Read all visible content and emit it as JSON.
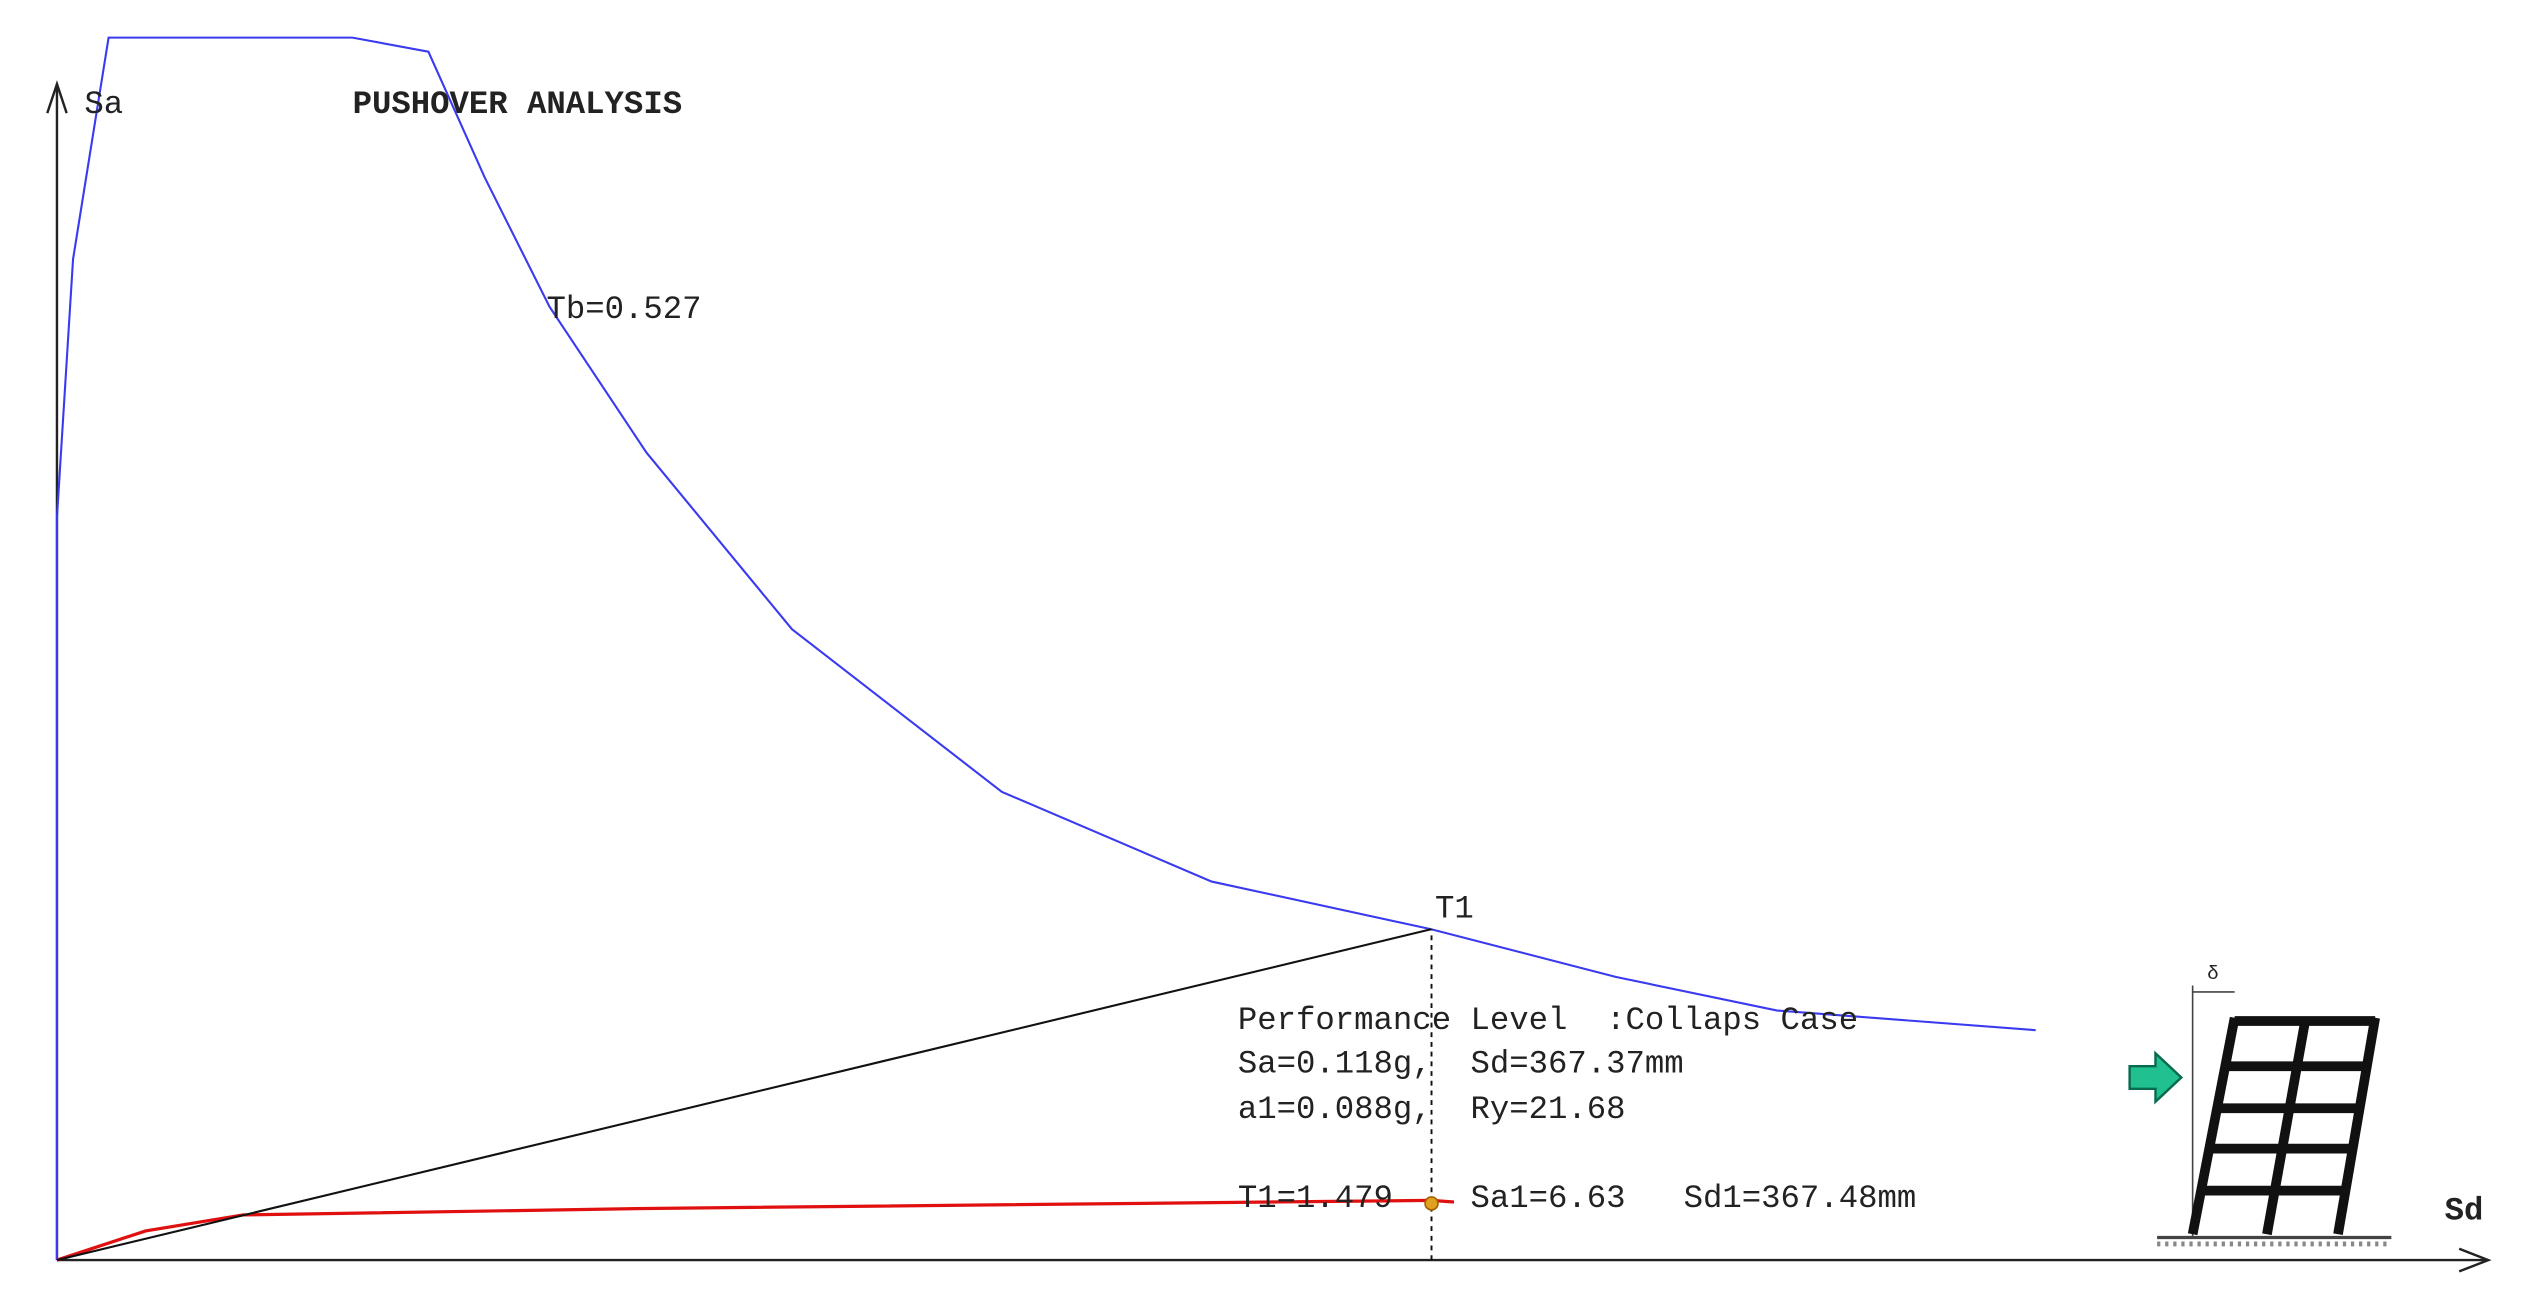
{
  "chart_data": {
    "type": "line",
    "title": "PUSHOVER ANALYSIS",
    "x_label": "Sd",
    "y_label": "Sa",
    "xlim": [
      0,
      650
    ],
    "ylim": [
      0,
      0.45
    ],
    "annotations": [
      "Tb=0.527",
      "T1",
      "Performance Level  :Collaps Case",
      "Sa=0.118g,  Sd=367.37mm",
      "a1=0.088g,  Ry=21.68",
      "T1=1.479    Sa1=6.63   Sd1=367.48mm"
    ],
    "series": [
      {
        "color": "#3a3af0",
        "x": [
          0,
          0,
          4.3,
          13.8,
          79,
          99.3,
          114.4,
          131.7,
          157.6,
          196.5,
          252.6,
          308.7,
          367.4,
          416.7,
          459.9,
          529
        ],
        "values": [
          0,
          0.265,
          0.357,
          0.436,
          0.436,
          0.431,
          0.386,
          0.34,
          0.288,
          0.225,
          0.167,
          0.135,
          0.118,
          0.101,
          0.089,
          0.082
        ]
      },
      {
        "color": "#e01010",
        "x": [
          0,
          23.7,
          49.7,
          157.6,
          367.4,
          373.5
        ],
        "values": [
          0,
          0.0104,
          0.0161,
          0.0184,
          0.0213,
          0.0207
        ]
      },
      {
        "color": "#111111",
        "x": [
          0,
          367.37
        ],
        "values": [
          0,
          0.118
        ]
      },
      {
        "color": "#e0a020",
        "x": [
          367.48
        ],
        "values": [
          0.0202
        ]
      }
    ]
  }
}
